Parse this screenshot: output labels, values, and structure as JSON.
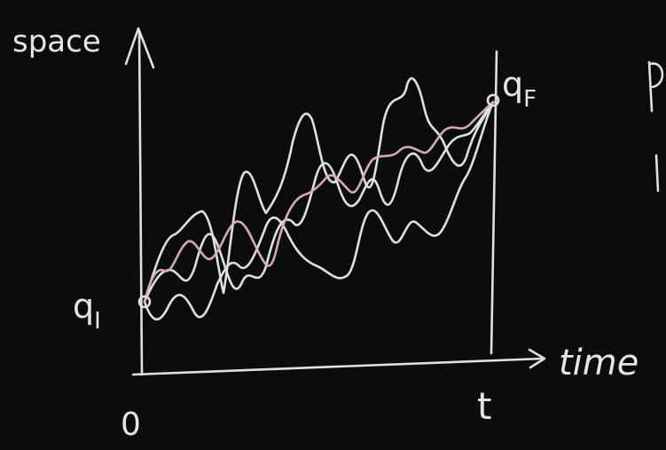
{
  "axes": {
    "y_label": "space",
    "x_label": "time",
    "origin": "0",
    "end_time": "t"
  },
  "points": {
    "start": {
      "symbol": "q",
      "subscript": "I"
    },
    "end": {
      "symbol": "q",
      "subscript": "F"
    }
  }
}
